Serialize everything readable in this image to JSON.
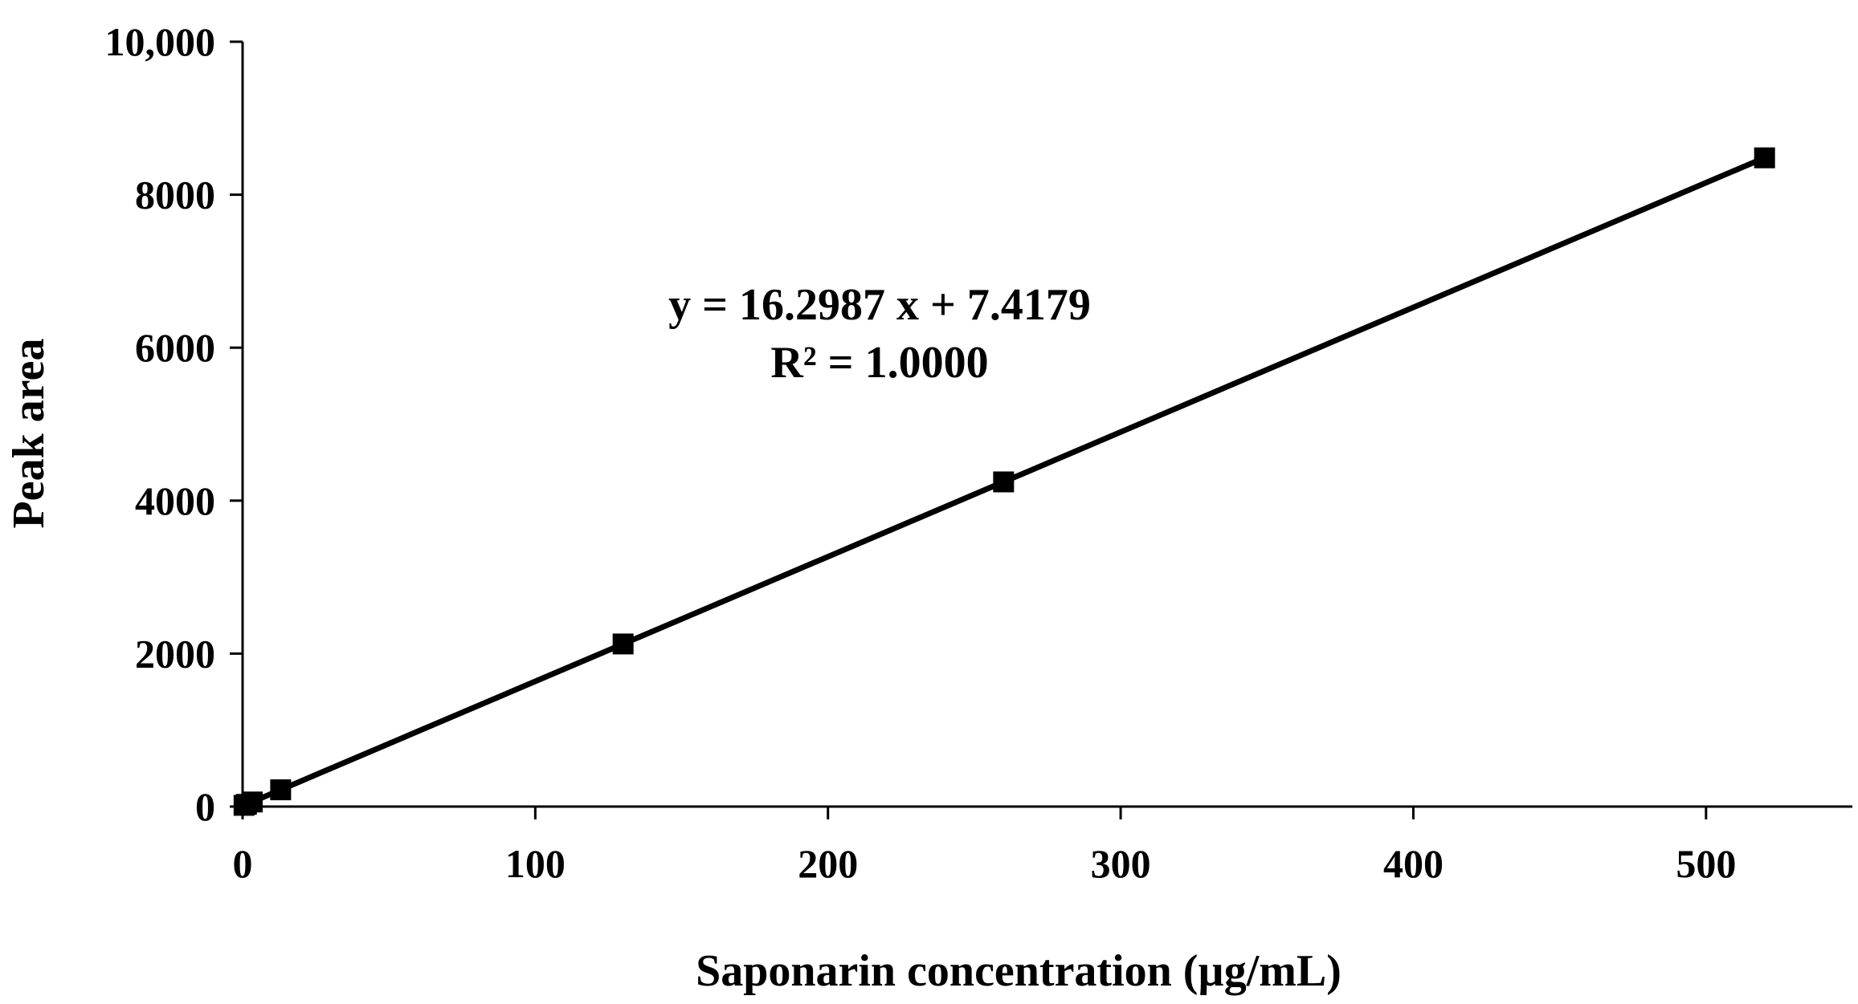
{
  "chart_data": {
    "type": "scatter",
    "title": "",
    "xlabel": "Saponarin concentration (µg/mL)",
    "ylabel": "Peak area",
    "xlim": [
      0,
      550
    ],
    "ylim": [
      0,
      10000
    ],
    "x_ticks": [
      {
        "value": 0,
        "label": "0"
      },
      {
        "value": 100,
        "label": "100"
      },
      {
        "value": 200,
        "label": "200"
      },
      {
        "value": 300,
        "label": "300"
      },
      {
        "value": 400,
        "label": "400"
      },
      {
        "value": 500,
        "label": "500"
      }
    ],
    "y_ticks": [
      {
        "value": 0,
        "label": "0"
      },
      {
        "value": 2000,
        "label": "2000"
      },
      {
        "value": 4000,
        "label": "4000"
      },
      {
        "value": 6000,
        "label": "6000"
      },
      {
        "value": 8000,
        "label": "8000"
      },
      {
        "value": 10000,
        "label": "10,000"
      }
    ],
    "grid": false,
    "legend": "none",
    "series": [
      {
        "marker": "square",
        "color": "#000000",
        "points": [
          {
            "x": 0.5,
            "y": 16
          },
          {
            "x": 1.3,
            "y": 29
          },
          {
            "x": 3.3,
            "y": 60
          },
          {
            "x": 13,
            "y": 219
          },
          {
            "x": 130,
            "y": 2126
          },
          {
            "x": 260,
            "y": 4245
          },
          {
            "x": 520,
            "y": 8482
          }
        ]
      }
    ],
    "trendline": {
      "slope": 16.2987,
      "intercept": 7.4179,
      "x_range": [
        0,
        520
      ],
      "color": "#000000"
    },
    "annotations": {
      "equation": "y = 16.2987 x + 7.4179",
      "r_squared": "R² = 1.0000"
    }
  }
}
